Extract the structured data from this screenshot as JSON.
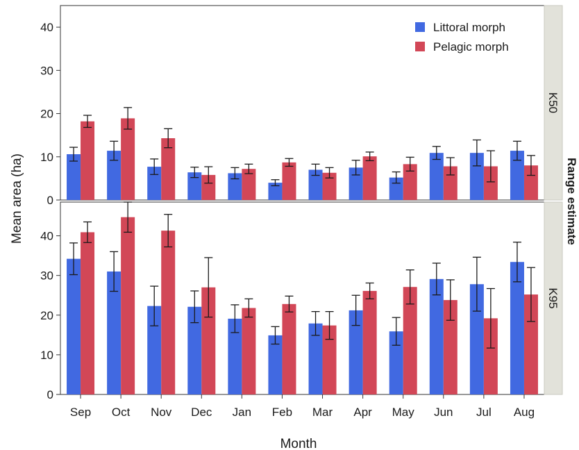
{
  "chart_data": {
    "type": "bar",
    "xlabel": "Month",
    "ylabel": "Mean area (ha)",
    "facet_label": "Range estimate",
    "categories": [
      "Sep",
      "Oct",
      "Nov",
      "Dec",
      "Jan",
      "Feb",
      "Mar",
      "Apr",
      "May",
      "Jun",
      "Jul",
      "Aug"
    ],
    "legend": [
      {
        "name": "Littoral morph",
        "color": "#4169e1"
      },
      {
        "name": "Pelagic morph",
        "color": "#d24757"
      }
    ],
    "legend_position": "top-right",
    "grid": false,
    "panels": [
      {
        "label": "K50",
        "ylim": [
          0,
          45
        ],
        "yticks": [
          0,
          10,
          20,
          30,
          40
        ],
        "series": [
          {
            "name": "Littoral morph",
            "values": [
              10.6,
              11.4,
              7.7,
              6.4,
              6.2,
              4.0,
              7.0,
              7.5,
              5.2,
              10.9,
              10.9,
              11.4
            ],
            "err": [
              1.6,
              2.2,
              1.8,
              1.2,
              1.3,
              0.7,
              1.3,
              1.7,
              1.3,
              1.5,
              3.0,
              2.2
            ]
          },
          {
            "name": "Pelagic morph",
            "values": [
              18.2,
              18.9,
              14.3,
              5.8,
              7.2,
              8.7,
              6.3,
              10.1,
              8.3,
              7.8,
              7.8,
              8.0
            ],
            "err": [
              1.4,
              2.5,
              2.2,
              1.9,
              1.1,
              0.9,
              1.2,
              1.0,
              1.6,
              2.0,
              3.6,
              2.3
            ]
          }
        ]
      },
      {
        "label": "K95",
        "ylim": [
          0,
          48.5
        ],
        "yticks": [
          0,
          10,
          20,
          30,
          40
        ],
        "series": [
          {
            "name": "Littoral morph",
            "values": [
              34.2,
              31.0,
              22.3,
              22.1,
              19.1,
              14.9,
              17.9,
              21.2,
              15.9,
              29.1,
              27.8,
              33.4
            ],
            "err": [
              4.0,
              5.0,
              5.0,
              4.0,
              3.5,
              2.2,
              3.0,
              3.8,
              3.5,
              4.0,
              6.8,
              5.0
            ]
          },
          {
            "name": "Pelagic morph",
            "values": [
              40.9,
              44.7,
              41.3,
              27.0,
              21.8,
              22.8,
              17.4,
              26.1,
              27.1,
              23.8,
              19.2,
              25.2
            ],
            "err": [
              2.6,
              3.8,
              4.1,
              7.5,
              2.3,
              2.0,
              3.5,
              2.0,
              4.3,
              5.1,
              7.5,
              6.8
            ]
          }
        ]
      }
    ]
  }
}
